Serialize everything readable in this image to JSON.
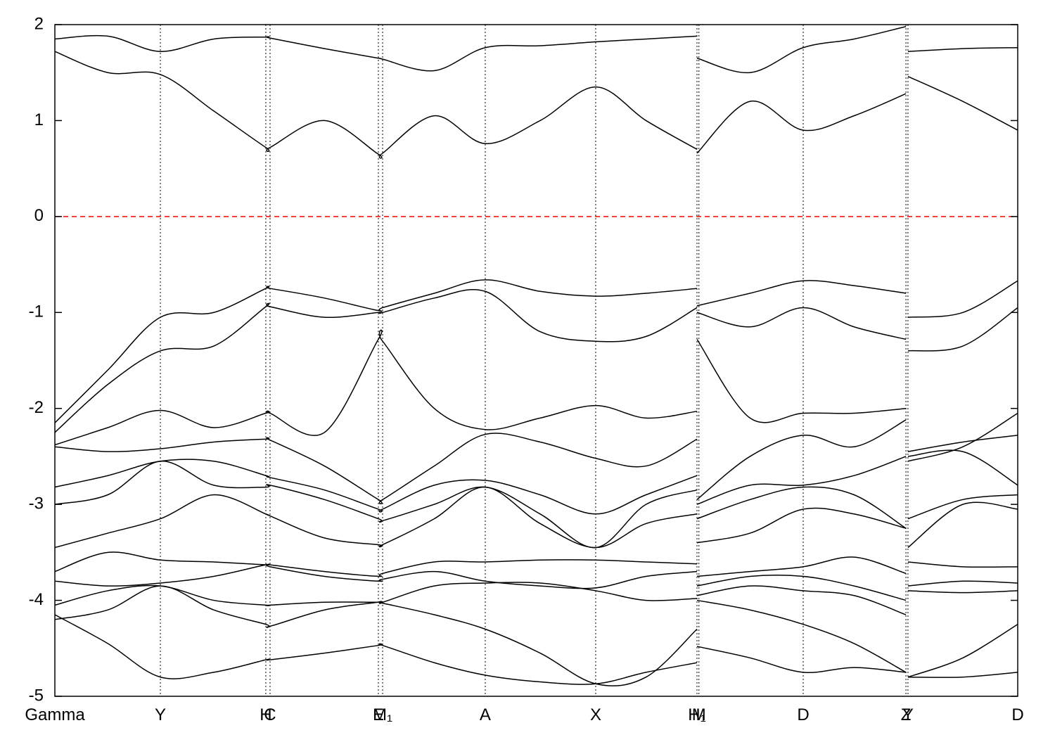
{
  "chart_data": {
    "type": "line",
    "x": [
      0,
      0.055,
      0.1096,
      0.165,
      0.2191,
      0.2235,
      0.28,
      0.336,
      0.3404,
      0.394,
      0.447,
      0.504,
      0.5617,
      0.614,
      0.6669,
      0.6669,
      0.6669,
      0.722,
      0.7772,
      0.83,
      0.8839,
      0.8839,
      0.886,
      0.943,
      1.0
    ],
    "xlim": [
      0,
      1
    ],
    "ylim": [
      -5,
      2
    ],
    "yticks": [
      -5,
      -4,
      -3,
      -2,
      -1,
      0,
      1,
      2
    ],
    "xticks": [
      {
        "value": 0,
        "label": "Gamma"
      },
      {
        "value": 0.1096,
        "label": "Y"
      },
      {
        "value": 0.2191,
        "label": "H"
      },
      {
        "value": 0.2235,
        "label": "C"
      },
      {
        "value": 0.336,
        "label": "E"
      },
      {
        "value": 0.3404,
        "label": "M₁"
      },
      {
        "value": 0.447,
        "label": "A"
      },
      {
        "value": 0.5617,
        "label": "X"
      },
      {
        "value": 0.6669,
        "label": "H₁"
      },
      {
        "value": 0.6689,
        "label": "M"
      },
      {
        "value": 0.7772,
        "label": "D"
      },
      {
        "value": 0.8839,
        "label": "Z"
      },
      {
        "value": 0.886,
        "label": "Y"
      },
      {
        "value": 1.0,
        "label": "D"
      }
    ],
    "grid": true,
    "fermi_level": {
      "value": 0,
      "color": "#ff0000"
    },
    "series": [
      {
        "color": "#000000",
        "values": [
          1.72,
          1.5,
          1.48,
          1.1,
          0.72,
          0.72,
          1.0,
          0.65,
          0.66,
          1.05,
          0.76,
          1.0,
          1.35,
          1.0,
          0.7,
          null,
          0.66,
          1.2,
          0.9,
          1.05,
          1.28,
          null,
          1.46,
          1.2,
          0.9
        ]
      },
      {
        "color": "#000000",
        "values": [
          1.85,
          1.88,
          1.72,
          1.85,
          1.87,
          1.86,
          1.75,
          1.65,
          1.64,
          1.52,
          1.76,
          1.78,
          1.82,
          1.85,
          1.88,
          null,
          1.65,
          1.5,
          1.76,
          1.85,
          1.98,
          null,
          1.72,
          1.75,
          1.76
        ]
      },
      {
        "color": "#000000",
        "values": [
          -2.15,
          -1.6,
          -1.05,
          -1.0,
          -0.75,
          -0.75,
          -0.85,
          -0.98,
          -0.95,
          -0.8,
          -0.66,
          -0.78,
          -0.83,
          -0.8,
          -0.75,
          null,
          -0.93,
          -0.8,
          -0.67,
          -0.72,
          -0.8,
          null,
          -1.05,
          -1.0,
          -0.67
        ]
      },
      {
        "color": "#000000",
        "values": [
          -2.25,
          -1.75,
          -1.4,
          -1.35,
          -0.94,
          -0.94,
          -1.05,
          -1.0,
          -1.0,
          -0.85,
          -0.78,
          -1.2,
          -1.3,
          -1.25,
          -0.95,
          null,
          -1.0,
          -1.15,
          -0.95,
          -1.15,
          -1.28,
          null,
          -1.4,
          -1.35,
          -0.95
        ]
      },
      {
        "color": "#000000",
        "values": [
          -2.38,
          -2.2,
          -2.02,
          -2.2,
          -2.05,
          -2.05,
          -2.25,
          -1.28,
          -1.3,
          -2.0,
          -2.22,
          -2.1,
          -1.97,
          -2.1,
          -2.03,
          null,
          -1.28,
          -2.1,
          -2.05,
          -2.05,
          -2.0,
          null,
          -2.55,
          -2.4,
          -2.05
        ]
      },
      {
        "color": "#000000",
        "values": [
          -2.4,
          -2.45,
          -2.42,
          -2.35,
          -2.32,
          -2.33,
          -2.6,
          -2.95,
          -2.95,
          -2.6,
          -2.27,
          -2.35,
          -2.52,
          -2.6,
          -2.32,
          null,
          -2.95,
          -2.5,
          -2.28,
          -2.4,
          -2.12,
          null,
          -2.45,
          -2.35,
          -2.28
        ]
      },
      {
        "color": "#000000",
        "values": [
          -2.82,
          -2.7,
          -2.55,
          -2.55,
          -2.7,
          -2.72,
          -2.85,
          -3.05,
          -3.05,
          -2.8,
          -2.75,
          -2.9,
          -3.1,
          -2.9,
          -2.7,
          null,
          -3.0,
          -2.8,
          -2.8,
          -2.7,
          -2.5,
          null,
          -2.5,
          -2.45,
          -2.8
        ]
      },
      {
        "color": "#000000",
        "values": [
          -3.0,
          -2.9,
          -2.55,
          -2.8,
          -2.82,
          -2.8,
          -2.95,
          -3.15,
          -3.17,
          -3.0,
          -2.82,
          -3.1,
          -3.45,
          -3.0,
          -2.85,
          null,
          -3.15,
          -2.95,
          -2.82,
          -2.9,
          -3.25,
          null,
          -3.15,
          -2.95,
          -2.9
        ]
      },
      {
        "color": "#000000",
        "values": [
          -3.45,
          -3.3,
          -3.15,
          -2.9,
          -3.1,
          -3.12,
          -3.35,
          -3.42,
          -3.42,
          -3.15,
          -2.82,
          -3.2,
          -3.45,
          -3.2,
          -3.1,
          null,
          -3.4,
          -3.3,
          -3.05,
          -3.1,
          -3.25,
          null,
          -3.45,
          -3.0,
          -3.05
        ]
      },
      {
        "color": "#000000",
        "values": [
          -3.7,
          -3.5,
          -3.58,
          -3.6,
          -3.63,
          -3.63,
          -3.7,
          -3.75,
          -3.72,
          -3.6,
          -3.6,
          -3.58,
          -3.58,
          -3.6,
          -3.62,
          null,
          -3.75,
          -3.7,
          -3.65,
          -3.55,
          -3.72,
          null,
          -3.6,
          -3.65,
          -3.65
        ]
      },
      {
        "color": "#000000",
        "values": [
          -3.8,
          -3.85,
          -3.82,
          -3.75,
          -3.63,
          -3.65,
          -3.75,
          -3.8,
          -3.78,
          -3.7,
          -3.8,
          -3.85,
          -3.87,
          -3.75,
          -3.7,
          null,
          -3.85,
          -3.75,
          -3.75,
          -3.85,
          -4.0,
          null,
          -3.85,
          -3.8,
          -3.82
        ]
      },
      {
        "color": "#000000",
        "values": [
          -4.05,
          -3.9,
          -3.85,
          -4.0,
          -4.05,
          -4.05,
          -4.02,
          -4.02,
          -4.02,
          -3.85,
          -3.82,
          -3.82,
          -3.9,
          -4.0,
          -3.98,
          null,
          -3.95,
          -3.85,
          -3.9,
          -3.95,
          -4.15,
          null,
          -3.9,
          -3.92,
          -3.9
        ]
      },
      {
        "color": "#000000",
        "values": [
          -4.15,
          -4.45,
          -4.8,
          -4.75,
          -4.62,
          -4.62,
          -4.55,
          -4.47,
          -4.47,
          -4.65,
          -4.78,
          -4.85,
          -4.87,
          -4.75,
          -4.65,
          null,
          -4.48,
          -4.6,
          -4.75,
          -4.7,
          -4.75,
          null,
          -4.8,
          -4.8,
          -4.75
        ]
      },
      {
        "color": "#000000",
        "values": [
          -4.2,
          -4.1,
          -3.85,
          -4.1,
          -4.25,
          -4.27,
          -4.1,
          -4.02,
          -4.03,
          -4.15,
          -4.3,
          -4.55,
          -4.87,
          -4.8,
          -4.3,
          null,
          -4.0,
          -4.1,
          -4.25,
          -4.45,
          -4.75,
          null,
          -4.8,
          -4.6,
          -4.25
        ]
      }
    ]
  }
}
